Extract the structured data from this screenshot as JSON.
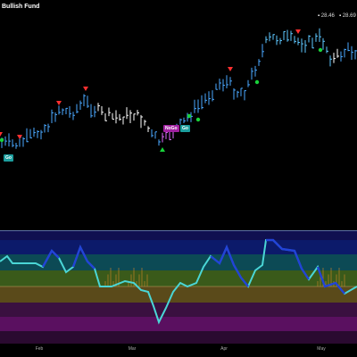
{
  "header": {
    "title": "Bullish Fund",
    "price_1": "28.46",
    "price_2": "28.69"
  },
  "signals": {
    "nogo_label": "NoGo",
    "go_label": "Go",
    "go_label_left": "Go"
  },
  "time_axis": {
    "labels": [
      "Feb",
      "Mar",
      "Apr",
      "May"
    ]
  },
  "colors": {
    "background": "#000000",
    "go_bar": "#4aa8ff",
    "go_bar_strong": "#5ec8ff",
    "nogo_bar": "#e06cff",
    "neutral_bar": "#ffffff",
    "up_triangle": "#19d23a",
    "down_triangle": "#ff3030",
    "oscillator_line": "#4ad6d6",
    "oscillator_strong": "#2243d6"
  }
}
